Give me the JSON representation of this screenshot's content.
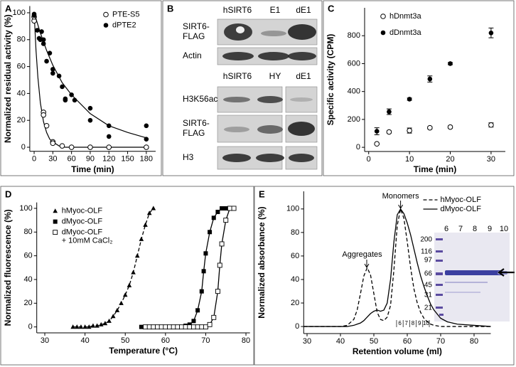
{
  "chart_data": [
    {
      "type": "scatter",
      "panel": "A",
      "xlabel": "Time (min)",
      "ylabel": "Normalized residual activity (%)",
      "xlim": [
        -7,
        195
      ],
      "xticks": [
        0,
        30,
        60,
        90,
        120,
        150,
        180
      ],
      "ylim": [
        -3,
        105
      ],
      "yticks": [
        0,
        20,
        40,
        60,
        80,
        100
      ],
      "legend": "upper right",
      "series": [
        {
          "name": "PTE-S5",
          "color": "#000000",
          "marker": "circle-open",
          "x": [
            0,
            0,
            15,
            15,
            20,
            30,
            30,
            45,
            60,
            90,
            120,
            180
          ],
          "values": [
            94,
            97,
            26,
            24,
            16,
            4,
            3,
            1,
            0,
            0,
            0,
            0
          ],
          "fit": {
            "x": [
              0,
              3,
              6,
              10,
              15,
              20,
              25,
              30,
              40,
              50,
              60,
              90,
              120,
              150,
              180
            ],
            "values": [
              100,
              72,
              52,
              33,
              19,
              11,
              6,
              4,
              1,
              0,
              0,
              0,
              0,
              0,
              0
            ]
          }
        },
        {
          "name": "dPTE2",
          "color": "#000000",
          "marker": "circle-filled",
          "x": [
            0,
            0,
            5,
            8,
            10,
            12,
            15,
            15,
            20,
            25,
            30,
            30,
            40,
            45,
            50,
            50,
            60,
            65,
            90,
            90,
            120,
            120,
            180,
            180
          ],
          "values": [
            99,
            98,
            87,
            81,
            80,
            86,
            80,
            77,
            64,
            70,
            58,
            55,
            53,
            45,
            36,
            35,
            39,
            35,
            29,
            20,
            16,
            8,
            16,
            6
          ],
          "fit": {
            "x": [
              0,
              10,
              20,
              30,
              45,
              60,
              90,
              120,
              150,
              180
            ],
            "values": [
              100,
              85,
              72,
              61,
              48,
              39,
              25,
              16,
              11,
              7
            ]
          }
        }
      ]
    },
    {
      "type": "blot",
      "panel": "B",
      "top": {
        "columns": [
          "hSIRT6",
          "E1",
          "dE1"
        ],
        "rows": [
          [
            "SIRT6-",
            "FLAG"
          ],
          [
            "Actin"
          ]
        ]
      },
      "bottom": {
        "columns": [
          "hSIRT6",
          "HY",
          "dE1"
        ],
        "rows": [
          [
            "H3K56ac"
          ],
          [
            "SIRT6-",
            "FLAG"
          ],
          [
            "H3"
          ]
        ]
      }
    },
    {
      "type": "scatter",
      "panel": "C",
      "xlabel": "Time (min)",
      "ylabel": "Specific activity (CPM)",
      "xlim": [
        -1,
        33.5
      ],
      "xticks": [
        0,
        10,
        20,
        30
      ],
      "ylim": [
        -30,
        1000
      ],
      "yticks": [
        0,
        200,
        400,
        600,
        800
      ],
      "legend": "upper left",
      "series": [
        {
          "name": "hDnmt3a",
          "color": "#000000",
          "marker": "circle-open",
          "x": [
            2,
            5,
            10,
            15,
            20,
            30
          ],
          "values": [
            25,
            110,
            120,
            140,
            145,
            160
          ],
          "errors": [
            5,
            8,
            18,
            8,
            8,
            15
          ]
        },
        {
          "name": "dDnmt3a",
          "color": "#000000",
          "marker": "circle-filled",
          "x": [
            2,
            5,
            10,
            15,
            20,
            30
          ],
          "values": [
            115,
            255,
            345,
            490,
            600,
            820
          ],
          "errors": [
            25,
            20,
            8,
            22,
            8,
            35
          ]
        }
      ]
    },
    {
      "type": "scatter",
      "panel": "D",
      "xlabel": "Temperature (°C)",
      "ylabel": "Normalized fluorescence (%)",
      "xlim": [
        28,
        81
      ],
      "xticks": [
        30,
        40,
        50,
        60,
        70,
        80
      ],
      "ylim": [
        -5,
        105
      ],
      "yticks": [
        0,
        20,
        40,
        60,
        80,
        100
      ],
      "legend": "upper left",
      "series": [
        {
          "name": "hMyoc-OLF",
          "color": "#000000",
          "marker": "triangle",
          "linestyle": "dashed",
          "x": [
            37,
            38,
            39,
            40,
            41,
            42,
            43,
            44,
            45,
            46,
            47,
            48,
            49,
            50,
            51,
            52,
            53,
            54,
            55,
            56,
            57
          ],
          "values": [
            0,
            0,
            0,
            0,
            0,
            1,
            1,
            2,
            3,
            5,
            9,
            14,
            20,
            27,
            35,
            46,
            60,
            74,
            86,
            96,
            100
          ]
        },
        {
          "name": "dMyoc-OLF",
          "color": "#000000",
          "marker": "square",
          "linestyle": "solid",
          "x": [
            54,
            55,
            56,
            57,
            58,
            59,
            60,
            61,
            62,
            63,
            64,
            65,
            66,
            67,
            68,
            69,
            69.5,
            70,
            71,
            72,
            73,
            74,
            75
          ],
          "values": [
            0,
            0,
            0,
            0,
            0,
            0,
            0,
            0,
            0,
            0,
            0,
            1,
            2,
            5,
            14,
            30,
            47,
            62,
            80,
            92,
            97,
            100,
            100
          ]
        },
        {
          "name": "dMyoc-OLF",
          "legend_note": "+ 10mM CaCl₂",
          "color": "#000000",
          "marker": "square-open",
          "linestyle": "solid",
          "x": [
            55,
            56,
            57,
            58,
            59,
            60,
            61,
            62,
            63,
            64,
            65,
            66,
            67,
            68,
            69,
            70,
            71,
            72,
            73,
            73.5,
            74,
            75,
            76,
            77
          ],
          "values": [
            0,
            0,
            0,
            0,
            0,
            0,
            0,
            0,
            0,
            0,
            0,
            0,
            0,
            0,
            0,
            0,
            2,
            8,
            30,
            52,
            70,
            90,
            100,
            100
          ]
        }
      ]
    },
    {
      "type": "line",
      "panel": "E",
      "xlabel": "Retention volume (ml)",
      "ylabel": "Normalized absorbance (%)",
      "xlim": [
        29,
        85
      ],
      "xticks": [
        30,
        40,
        50,
        60,
        70,
        80
      ],
      "ylim": [
        -6,
        115
      ],
      "yticks": [
        0,
        20,
        40,
        60,
        80,
        100
      ],
      "legend": "upper right",
      "annotations": [
        "Monomers",
        "Aggregates"
      ],
      "fractions": [
        "6",
        "7",
        "8",
        "9",
        "10"
      ],
      "inset": {
        "marker_labels": [
          "200",
          "116",
          "97",
          "66",
          "45",
          "31",
          "21"
        ],
        "lane_labels": [
          "6",
          "7",
          "8",
          "9",
          "10"
        ]
      },
      "series": [
        {
          "name": "hMyoc-OLF",
          "color": "#000000",
          "linestyle": "dashed",
          "x": [
            29,
            35,
            40,
            42,
            44,
            45,
            46,
            47,
            48,
            49,
            50,
            51,
            52,
            53,
            54,
            55,
            56,
            57,
            58,
            59,
            60,
            61,
            62,
            63,
            64,
            65,
            66,
            67,
            68,
            70,
            72,
            75,
            80,
            85
          ],
          "values": [
            0,
            0,
            0,
            1,
            6,
            14,
            28,
            43,
            50,
            44,
            28,
            12,
            6,
            5,
            8,
            18,
            48,
            86,
            100,
            92,
            72,
            50,
            32,
            20,
            12,
            7,
            4,
            2,
            1,
            0,
            0,
            0,
            0,
            0
          ]
        },
        {
          "name": "dMyoc-OLF",
          "color": "#000000",
          "linestyle": "solid",
          "x": [
            29,
            35,
            40,
            42,
            44,
            45,
            46,
            47,
            48,
            49,
            50,
            51,
            52,
            53,
            54,
            55,
            56,
            57,
            58,
            59,
            60,
            61,
            62,
            63,
            64,
            65,
            66,
            67,
            68,
            70,
            72,
            75,
            80,
            85
          ],
          "values": [
            0,
            0,
            0,
            0,
            1,
            2,
            3,
            5,
            8,
            11,
            13,
            14,
            13,
            14,
            20,
            40,
            72,
            95,
            100,
            96,
            88,
            78,
            66,
            54,
            43,
            34,
            26,
            19,
            14,
            7,
            4,
            2,
            1,
            0
          ]
        }
      ]
    }
  ]
}
